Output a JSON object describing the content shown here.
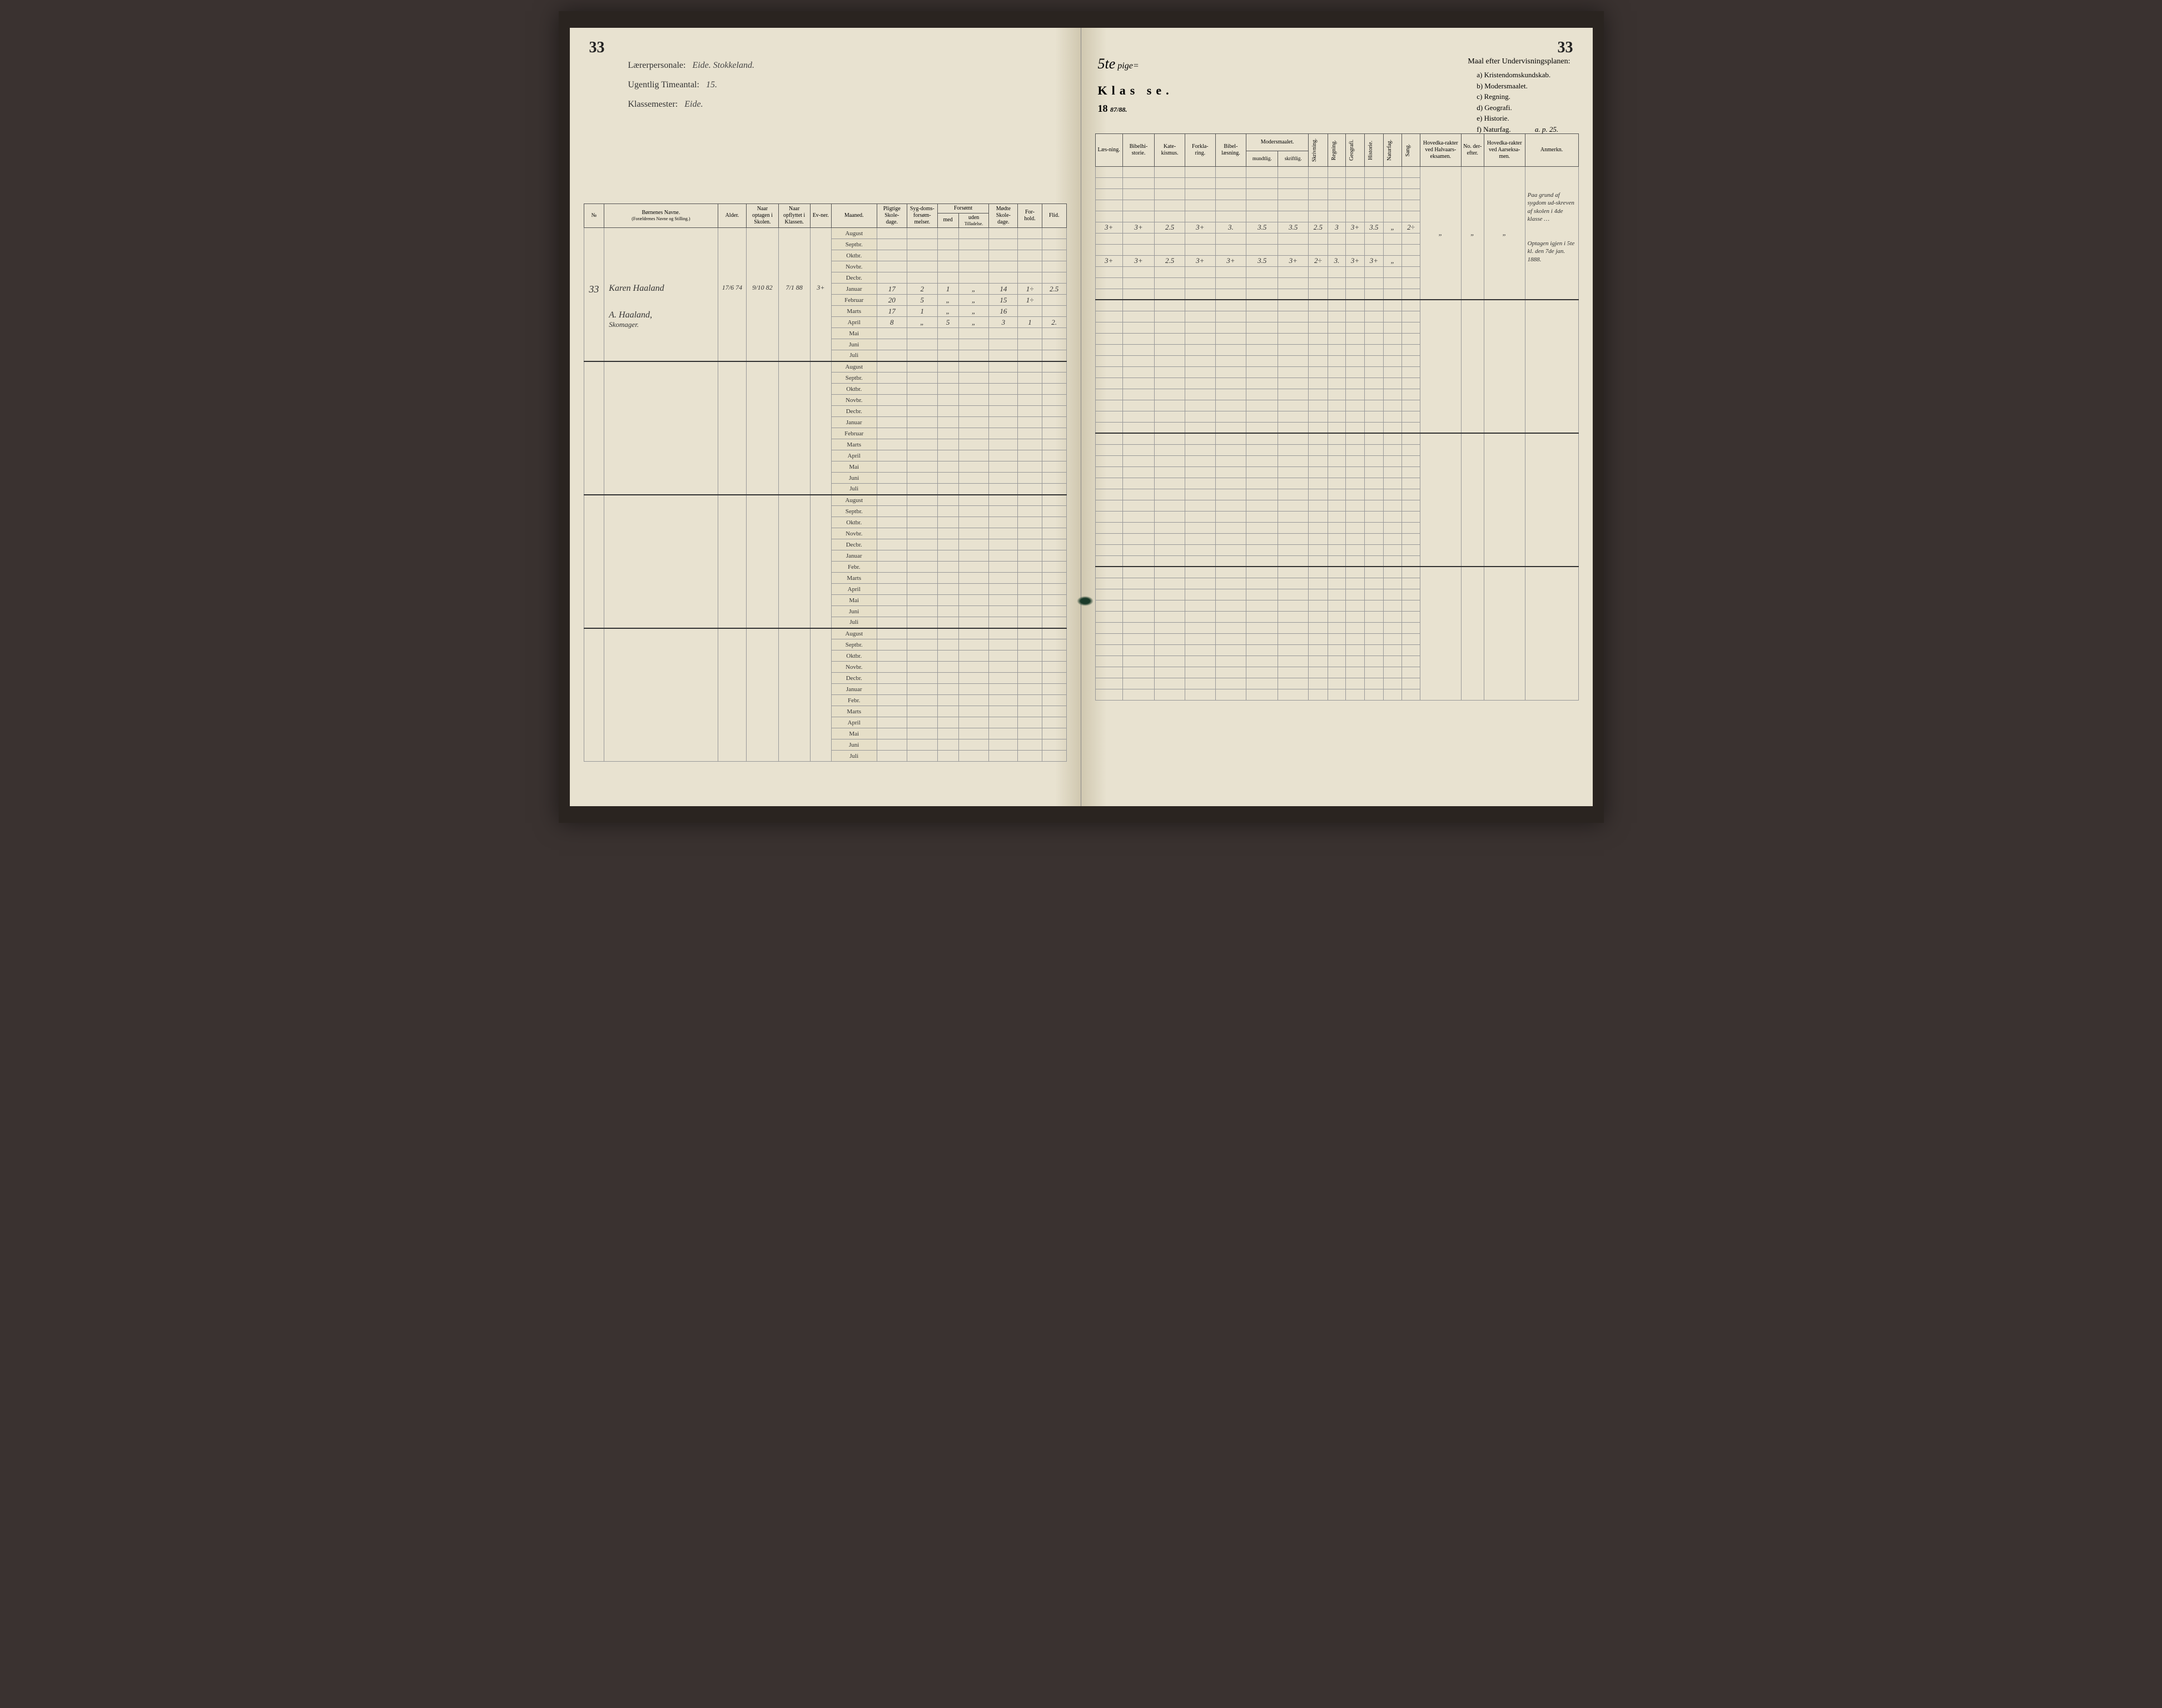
{
  "page_number_left": "33",
  "page_number_right": "33",
  "header": {
    "laererpersonale_label": "Lærerpersonale:",
    "laererpersonale_value": "Eide. Stokkeland.",
    "ugentlig_label": "Ugentlig Timeantal:",
    "ugentlig_value": "15.",
    "klassemester_label": "Klassemester:",
    "klassemester_value": "Eide.",
    "klasse_number": "5te",
    "klasse_suffix": "pige=",
    "klasse_label": "Klas se.",
    "year_label": "18",
    "year_fraction": "87/88."
  },
  "maal": {
    "title": "Maal efter Undervisningsplanen:",
    "items": [
      "a) Kristendomskundskab.",
      "b) Modersmaalet.",
      "c) Regning.",
      "d) Geografi.",
      "e) Historie.",
      "f) Naturfag."
    ],
    "ref": "a. p. 25."
  },
  "columns_left": {
    "no": "№",
    "navne": "Børnenes Navne.",
    "navne_sub": "(Forældrenes Navne og Stilling.)",
    "alder": "Alder.",
    "optagen": "Naar optagen i Skolen.",
    "opflyttet": "Naar opflyttet i Klassen.",
    "evner": "Ev-ner.",
    "maaned": "Maaned.",
    "pligtige": "Pligtige Skole-dage.",
    "sygdoms": "Syg-doms-forsøm-melser.",
    "forsomt_header": "Forsømt",
    "forsomt_med": "med",
    "forsomt_uden": "uden",
    "forsomt_sub": "Tilladelse.",
    "modte": "Mødte Skole-dage.",
    "forhold": "For-hold.",
    "flid": "Flid."
  },
  "columns_right": {
    "laesning": "Læs-ning.",
    "bibelhistorie": "Bibelhi-storie.",
    "katekismus": "Kate-kismus.",
    "forklaring": "Forkla-ring.",
    "bibellaesning": "Bibel-læsning.",
    "modersmaalet": "Modersmaalet.",
    "mundtlig": "mundtlig.",
    "skriftlig": "skriftlig.",
    "skrivning": "Skrivning.",
    "regning": "Regning.",
    "geografi": "Geografi.",
    "historie": "Historie.",
    "naturfag": "Naturfag.",
    "sang": "Sang.",
    "hovedkarakter_halv": "Hovedka-rakter ved Halvaars-eksamen.",
    "no_derefter": "No. der-efter.",
    "hovedkarakter_aars": "Hovedka-rakter ved Aarseksa-men.",
    "anmerkn": "Anmerkn."
  },
  "months": [
    "August",
    "Septbr.",
    "Oktbr.",
    "Novbr.",
    "Decbr.",
    "Januar",
    "Februar",
    "Marts",
    "April",
    "Mai",
    "Juni",
    "Juli"
  ],
  "months_short": [
    "August",
    "Septbr.",
    "Oktbr.",
    "Novbr.",
    "Decbr.",
    "Januar",
    "Febr.",
    "Marts",
    "April",
    "Mai",
    "Juni",
    "Juli"
  ],
  "student": {
    "no": "33",
    "name": "Karen Haaland",
    "parent": "A. Haaland,",
    "parent_occ": "Skomager.",
    "alder": "17/6 74",
    "optagen": "9/10 82",
    "opflyttet": "7/1 88",
    "evner": "3+"
  },
  "attendance": {
    "januar": {
      "pligtige": "17",
      "syg": "2",
      "med": "1",
      "uden": "„",
      "modte": "14",
      "forhold": "1÷",
      "flid": "2.5"
    },
    "februar": {
      "pligtige": "20",
      "syg": "5",
      "med": "„",
      "uden": "„",
      "modte": "15",
      "forhold": "1÷",
      "flid": ""
    },
    "marts": {
      "pligtige": "17",
      "syg": "1",
      "med": "„",
      "uden": "„",
      "modte": "16",
      "forhold": "",
      "flid": ""
    },
    "april": {
      "pligtige": "8",
      "syg": "„",
      "med": "5",
      "uden": "„",
      "modte": "3",
      "forhold": "1",
      "flid": "2."
    }
  },
  "grades": {
    "januar": {
      "laes": "3+",
      "bibel": "3+",
      "kate": "2.5",
      "forkl": "3+",
      "bibell": "3.",
      "mund": "3.5",
      "skrift": "3.5",
      "skriv": "2.5",
      "regn": "3",
      "geo": "3+",
      "hist": "3.5",
      "natur": "„",
      "sang": "2÷"
    },
    "april": {
      "laes": "3+",
      "bibel": "3+",
      "kate": "2.5",
      "forkl": "3+",
      "bibell": "3+",
      "mund": "3.5",
      "skrift": "3+",
      "skriv": "2÷",
      "regn": "3.",
      "geo": "3+",
      "hist": "3+",
      "natur": "„",
      "sang": ""
    }
  },
  "exam": {
    "halv": "„",
    "no": "„",
    "aars": "„"
  },
  "remarks": {
    "r1": "Paa grund af sygdom ud-skreven af skolen i 4de klasse …",
    "r2": "Optagen igjen i 5te kl. den 7de jan. 1888."
  },
  "colors": {
    "paper": "#e8e2d0",
    "ink": "#333333",
    "border": "#555555",
    "bg": "#3a3230"
  }
}
